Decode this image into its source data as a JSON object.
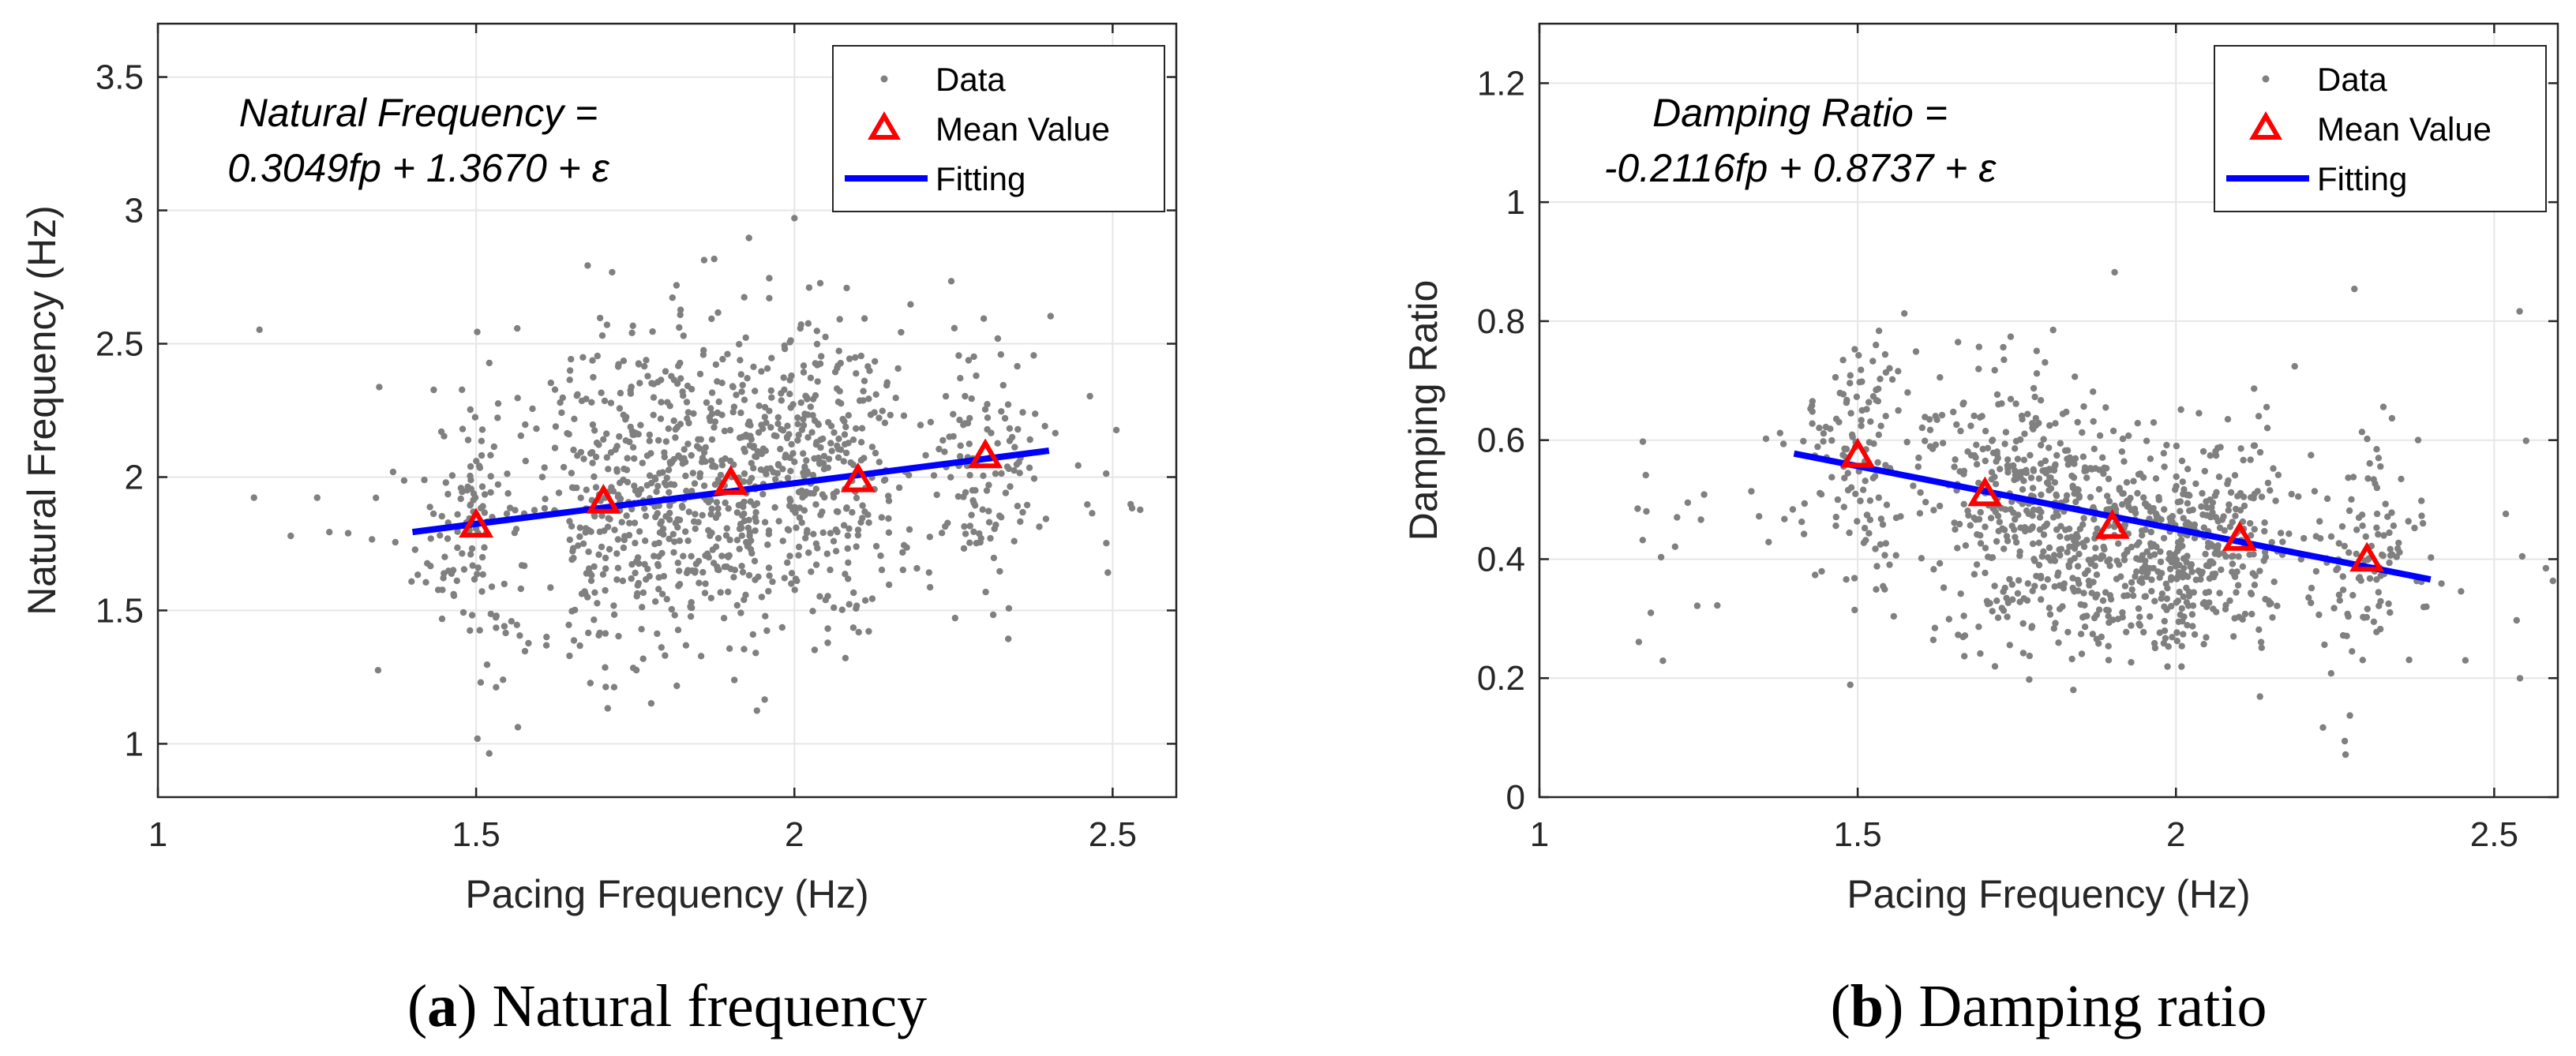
{
  "chart_data": [
    {
      "type": "scatter",
      "panel": "a",
      "caption_letter": "a",
      "caption_text": " Natural frequency",
      "xlabel": "Pacing Frequency (Hz)",
      "ylabel": "Natural Frequency (Hz)",
      "xlim": [
        1,
        2.6
      ],
      "ylim": [
        0.8,
        3.7
      ],
      "xticks": [
        1,
        1.5,
        2,
        2.5
      ],
      "xtick_labels": [
        "1",
        "1.5",
        "2",
        "2.5"
      ],
      "yticks": [
        1,
        1.5,
        2,
        2.5,
        3,
        3.5
      ],
      "ytick_labels": [
        "1",
        "1.5",
        "2",
        "2.5",
        "3",
        "3.5"
      ],
      "grid": true,
      "equation_line1": "Natural Frequency =",
      "equation_line2": "0.3049fp + 1.3670 + ε",
      "legend": {
        "position": "top-right",
        "entries": [
          "Data",
          "Mean Value",
          "Fitting"
        ]
      },
      "data_clusters": [
        {
          "x": 1.5,
          "y_mean": 1.82,
          "y_sd": 0.28,
          "count": 130
        },
        {
          "x": 1.7,
          "y_mean": 1.9,
          "y_sd": 0.3,
          "count": 170
        },
        {
          "x": 1.8,
          "y_mean": 1.95,
          "y_sd": 0.3,
          "count": 220
        },
        {
          "x": 1.9,
          "y_mean": 1.98,
          "y_sd": 0.3,
          "count": 160
        },
        {
          "x": 2.0,
          "y_mean": 2.02,
          "y_sd": 0.3,
          "count": 210
        },
        {
          "x": 2.1,
          "y_mean": 1.99,
          "y_sd": 0.3,
          "count": 130
        },
        {
          "x": 2.3,
          "y_mean": 2.08,
          "y_sd": 0.25,
          "count": 110
        }
      ],
      "mean_values": [
        {
          "x": 1.5,
          "y": 1.82
        },
        {
          "x": 1.7,
          "y": 1.91
        },
        {
          "x": 1.9,
          "y": 1.98
        },
        {
          "x": 2.1,
          "y": 1.99
        },
        {
          "x": 2.3,
          "y": 2.08
        }
      ],
      "fit": {
        "x": [
          1.4,
          2.4
        ],
        "y": [
          1.794,
          2.099
        ]
      }
    },
    {
      "type": "scatter",
      "panel": "b",
      "caption_letter": "b",
      "caption_text": " Damping ratio",
      "xlabel": "Pacing Frequency (Hz)",
      "ylabel": "Damping Ratio",
      "xlim": [
        1,
        2.6
      ],
      "ylim": [
        0,
        1.3
      ],
      "xticks": [
        1,
        1.5,
        2,
        2.5
      ],
      "xtick_labels": [
        "1",
        "1.5",
        "2",
        "2.5"
      ],
      "yticks": [
        0,
        0.2,
        0.4,
        0.6,
        0.8,
        1,
        1.2
      ],
      "ytick_labels": [
        "0",
        "0.2",
        "0.4",
        "0.6",
        "0.8",
        "1",
        "1.2"
      ],
      "grid": true,
      "equation_line1": "Damping Ratio =",
      "equation_line2": "-0.2116fp + 0.8737 + ε",
      "legend": {
        "position": "top-right",
        "entries": [
          "Data",
          "Mean Value",
          "Fitting"
        ]
      },
      "data_clusters": [
        {
          "x": 1.5,
          "y_mean": 0.57,
          "y_sd": 0.11,
          "count": 130
        },
        {
          "x": 1.7,
          "y_mean": 0.5,
          "y_sd": 0.12,
          "count": 170
        },
        {
          "x": 1.8,
          "y_mean": 0.47,
          "y_sd": 0.11,
          "count": 220
        },
        {
          "x": 1.9,
          "y_mean": 0.45,
          "y_sd": 0.1,
          "count": 160
        },
        {
          "x": 2.0,
          "y_mean": 0.4,
          "y_sd": 0.08,
          "count": 210
        },
        {
          "x": 2.1,
          "y_mean": 0.43,
          "y_sd": 0.09,
          "count": 130
        },
        {
          "x": 2.3,
          "y_mean": 0.4,
          "y_sd": 0.09,
          "count": 110
        }
      ],
      "mean_values": [
        {
          "x": 1.5,
          "y": 0.575
        },
        {
          "x": 1.7,
          "y": 0.51
        },
        {
          "x": 1.9,
          "y": 0.455
        },
        {
          "x": 2.1,
          "y": 0.435
        },
        {
          "x": 2.3,
          "y": 0.4
        }
      ],
      "fit": {
        "x": [
          1.4,
          2.4
        ],
        "y": [
          0.5775,
          0.3659
        ]
      }
    }
  ],
  "colors": {
    "data": "#808080",
    "mean": "#ff0000",
    "fit": "#0000ff"
  }
}
